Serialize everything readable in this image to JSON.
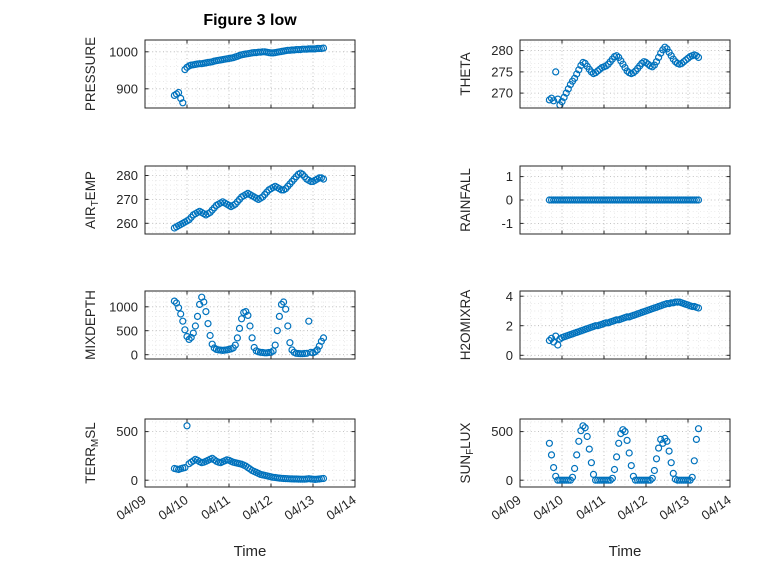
{
  "title": "Figure 3 low",
  "xlabel": "Time",
  "x_tick_labels": [
    "04/09",
    "04/10",
    "04/11",
    "04/12",
    "04/13",
    "04/14"
  ],
  "x_tick_values": [
    0,
    1,
    2,
    3,
    4,
    5
  ],
  "marker_color": "#0072BD",
  "axis_color": "#262626",
  "grid_color": "#b0b0b0",
  "minor_grid_color": "#d9d9d9",
  "x_days": [
    0.7,
    0.75,
    0.8,
    0.85,
    0.9,
    0.95,
    1.0,
    1.05,
    1.1,
    1.15,
    1.2,
    1.25,
    1.3,
    1.35,
    1.4,
    1.45,
    1.5,
    1.55,
    1.6,
    1.65,
    1.7,
    1.75,
    1.8,
    1.85,
    1.9,
    1.95,
    2.0,
    2.05,
    2.1,
    2.15,
    2.2,
    2.25,
    2.3,
    2.35,
    2.4,
    2.45,
    2.5,
    2.55,
    2.6,
    2.65,
    2.7,
    2.75,
    2.8,
    2.85,
    2.9,
    2.95,
    3.0,
    3.05,
    3.1,
    3.15,
    3.2,
    3.25,
    3.3,
    3.35,
    3.4,
    3.45,
    3.5,
    3.55,
    3.6,
    3.65,
    3.7,
    3.75,
    3.8,
    3.85,
    3.9,
    3.95,
    4.0,
    4.05,
    4.1,
    4.15,
    4.2,
    4.25
  ],
  "chart_data": [
    {
      "type": "scatter",
      "name": "pressure",
      "row": 0,
      "col": 0,
      "marker": "circle-open",
      "ylabel_parts": [
        {
          "t": "PRESSURE",
          "s": false
        }
      ],
      "ylim": [
        848,
        1032
      ],
      "yticks": [
        900,
        1000
      ],
      "yminor": 20,
      "y": [
        882,
        886,
        890,
        874,
        862,
        952,
        958,
        962,
        964,
        965,
        966,
        967,
        968,
        968,
        969,
        970,
        971,
        972,
        973,
        975,
        976,
        977,
        978,
        979,
        980,
        981,
        982,
        983,
        984,
        986,
        988,
        990,
        992,
        993,
        994,
        995,
        996,
        997,
        998,
        998,
        999,
        999,
        1000,
        1000,
        999,
        998,
        997,
        997,
        998,
        999,
        1000,
        1001,
        1002,
        1003,
        1004,
        1004,
        1005,
        1005,
        1006,
        1006,
        1006,
        1007,
        1007,
        1007,
        1008,
        1008,
        1008,
        1008,
        1009,
        1009,
        1009,
        1010
      ]
    },
    {
      "type": "scatter",
      "name": "theta",
      "row": 0,
      "col": 1,
      "marker": "circle-open",
      "ylabel_parts": [
        {
          "t": "THETA",
          "s": false
        }
      ],
      "ylim": [
        266.5,
        282.5
      ],
      "yticks": [
        270,
        275,
        280
      ],
      "yminor": 1,
      "y": [
        268.4,
        268.8,
        268.2,
        275.0,
        268.6,
        267.2,
        268.0,
        269.0,
        270.0,
        271.0,
        272.0,
        272.8,
        273.5,
        274.5,
        275.5,
        276.5,
        277.2,
        277.0,
        276.3,
        275.6,
        275.0,
        274.6,
        274.8,
        275.2,
        275.6,
        276.0,
        276.2,
        276.4,
        276.8,
        277.4,
        278.0,
        278.6,
        278.8,
        278.4,
        277.6,
        276.8,
        276.0,
        275.2,
        274.8,
        274.6,
        274.8,
        275.2,
        275.8,
        276.4,
        277.0,
        277.4,
        277.2,
        276.8,
        276.4,
        276.2,
        276.6,
        277.4,
        278.4,
        279.4,
        280.2,
        280.8,
        280.4,
        279.6,
        278.8,
        278.0,
        277.4,
        277.0,
        276.8,
        277.0,
        277.4,
        277.8,
        278.2,
        278.6,
        278.8,
        279.0,
        278.8,
        278.4
      ]
    },
    {
      "type": "scatter",
      "name": "air-temp",
      "row": 1,
      "col": 0,
      "marker": "circle-open",
      "ylabel_parts": [
        {
          "t": "AIR",
          "s": false
        },
        {
          "t": "T",
          "s": true
        },
        {
          "t": "EMP",
          "s": false
        }
      ],
      "ylim": [
        255.5,
        284
      ],
      "yticks": [
        260,
        270,
        280
      ],
      "yminor": 2,
      "y": [
        258.0,
        258.5,
        259.0,
        259.5,
        260.0,
        260.5,
        261.0,
        261.5,
        262.5,
        263.5,
        264.0,
        264.5,
        265.0,
        264.5,
        264.0,
        263.5,
        264.0,
        264.5,
        265.5,
        266.5,
        267.5,
        268.0,
        268.5,
        269.0,
        268.5,
        268.0,
        267.5,
        267.0,
        267.5,
        268.0,
        269.0,
        270.0,
        271.0,
        271.5,
        272.0,
        272.5,
        272.0,
        271.5,
        271.0,
        270.5,
        270.0,
        270.5,
        271.0,
        272.0,
        273.0,
        274.0,
        274.5,
        275.0,
        275.5,
        275.0,
        274.5,
        274.0,
        274.0,
        274.5,
        275.5,
        276.5,
        277.5,
        278.5,
        279.5,
        280.5,
        281.0,
        280.5,
        279.5,
        278.5,
        278.0,
        277.5,
        277.5,
        278.0,
        278.5,
        279.0,
        279.0,
        278.5
      ]
    },
    {
      "type": "scatter",
      "name": "rainfall",
      "row": 1,
      "col": 1,
      "marker": "circle-open",
      "ylabel_parts": [
        {
          "t": "RAINFALL",
          "s": false
        }
      ],
      "ylim": [
        -1.45,
        1.45
      ],
      "yticks": [
        -1,
        0,
        1
      ],
      "yminor": 0.25,
      "y": [
        0,
        0,
        0,
        0,
        0,
        0,
        0,
        0,
        0,
        0,
        0,
        0,
        0,
        0,
        0,
        0,
        0,
        0,
        0,
        0,
        0,
        0,
        0,
        0,
        0,
        0,
        0,
        0,
        0,
        0,
        0,
        0,
        0,
        0,
        0,
        0,
        0,
        0,
        0,
        0,
        0,
        0,
        0,
        0,
        0,
        0,
        0,
        0,
        0,
        0,
        0,
        0,
        0,
        0,
        0,
        0,
        0,
        0,
        0,
        0,
        0,
        0,
        0,
        0,
        0,
        0,
        0,
        0,
        0,
        0,
        0,
        0
      ]
    },
    {
      "type": "scatter",
      "name": "mixdepth",
      "row": 2,
      "col": 0,
      "marker": "circle-open",
      "ylabel_parts": [
        {
          "t": "MIXDEPTH",
          "s": false
        }
      ],
      "ylim": [
        -90,
        1330
      ],
      "yticks": [
        0,
        500,
        1000
      ],
      "yminor": 100,
      "y": [
        1120,
        1080,
        980,
        850,
        700,
        520,
        380,
        320,
        360,
        450,
        600,
        800,
        1050,
        1200,
        1100,
        900,
        650,
        400,
        220,
        140,
        110,
        100,
        95,
        90,
        95,
        100,
        110,
        120,
        140,
        200,
        350,
        550,
        750,
        880,
        900,
        820,
        600,
        350,
        150,
        80,
        60,
        50,
        45,
        40,
        40,
        45,
        50,
        80,
        200,
        500,
        800,
        1050,
        1100,
        950,
        600,
        250,
        100,
        50,
        30,
        25,
        20,
        20,
        25,
        30,
        700,
        50,
        40,
        60,
        100,
        180,
        280,
        350
      ]
    },
    {
      "type": "scatter",
      "name": "h2omixra",
      "row": 2,
      "col": 1,
      "marker": "circle-open",
      "ylabel_parts": [
        {
          "t": "H2OMIXRA",
          "s": false
        }
      ],
      "ylim": [
        -0.25,
        4.35
      ],
      "yticks": [
        0,
        2,
        4
      ],
      "yminor": 0.5,
      "y": [
        1.0,
        1.15,
        0.9,
        1.3,
        0.7,
        1.1,
        1.2,
        1.25,
        1.3,
        1.35,
        1.4,
        1.45,
        1.5,
        1.55,
        1.6,
        1.65,
        1.7,
        1.75,
        1.8,
        1.85,
        1.9,
        1.95,
        2.0,
        2.0,
        2.05,
        2.1,
        2.15,
        2.2,
        2.2,
        2.25,
        2.3,
        2.35,
        2.4,
        2.4,
        2.45,
        2.5,
        2.55,
        2.6,
        2.6,
        2.65,
        2.7,
        2.75,
        2.8,
        2.85,
        2.9,
        2.95,
        3.0,
        3.05,
        3.1,
        3.15,
        3.2,
        3.25,
        3.3,
        3.35,
        3.4,
        3.45,
        3.5,
        3.5,
        3.55,
        3.55,
        3.6,
        3.6,
        3.6,
        3.55,
        3.5,
        3.45,
        3.4,
        3.35,
        3.3,
        3.3,
        3.25,
        3.2
      ]
    },
    {
      "type": "scatter",
      "name": "terr-msl",
      "row": 3,
      "col": 0,
      "marker": "circle-open",
      "ylabel_parts": [
        {
          "t": "TERR",
          "s": false
        },
        {
          "t": "M",
          "s": true
        },
        {
          "t": "SL",
          "s": false
        }
      ],
      "ylim": [
        -70,
        630
      ],
      "yticks": [
        0,
        500
      ],
      "yminor": 100,
      "y": [
        120,
        115,
        110,
        118,
        125,
        130,
        560,
        170,
        185,
        200,
        215,
        205,
        190,
        180,
        185,
        195,
        205,
        215,
        225,
        210,
        195,
        185,
        180,
        190,
        200,
        210,
        205,
        195,
        185,
        180,
        175,
        170,
        165,
        155,
        145,
        130,
        115,
        100,
        90,
        80,
        70,
        60,
        55,
        50,
        45,
        40,
        35,
        30,
        28,
        25,
        22,
        20,
        18,
        16,
        15,
        14,
        13,
        12,
        12,
        11,
        10,
        10,
        10,
        12,
        15,
        12,
        10,
        8,
        10,
        12,
        15,
        18
      ]
    },
    {
      "type": "scatter",
      "name": "sun-flux",
      "row": 3,
      "col": 1,
      "marker": "circle-open",
      "ylabel_parts": [
        {
          "t": "SUN",
          "s": false
        },
        {
          "t": "F",
          "s": true
        },
        {
          "t": "LUX",
          "s": false
        }
      ],
      "ylim": [
        -70,
        630
      ],
      "yticks": [
        0,
        500
      ],
      "yminor": 100,
      "y": [
        380,
        260,
        130,
        40,
        0,
        0,
        0,
        0,
        0,
        0,
        0,
        30,
        120,
        260,
        400,
        510,
        560,
        540,
        450,
        320,
        180,
        60,
        0,
        0,
        0,
        0,
        0,
        0,
        0,
        0,
        20,
        110,
        240,
        380,
        480,
        520,
        500,
        410,
        280,
        150,
        40,
        0,
        0,
        0,
        0,
        0,
        0,
        0,
        0,
        20,
        100,
        220,
        330,
        420,
        380,
        430,
        400,
        300,
        180,
        70,
        10,
        0,
        0,
        0,
        0,
        0,
        0,
        0,
        30,
        200,
        420,
        530
      ]
    }
  ]
}
